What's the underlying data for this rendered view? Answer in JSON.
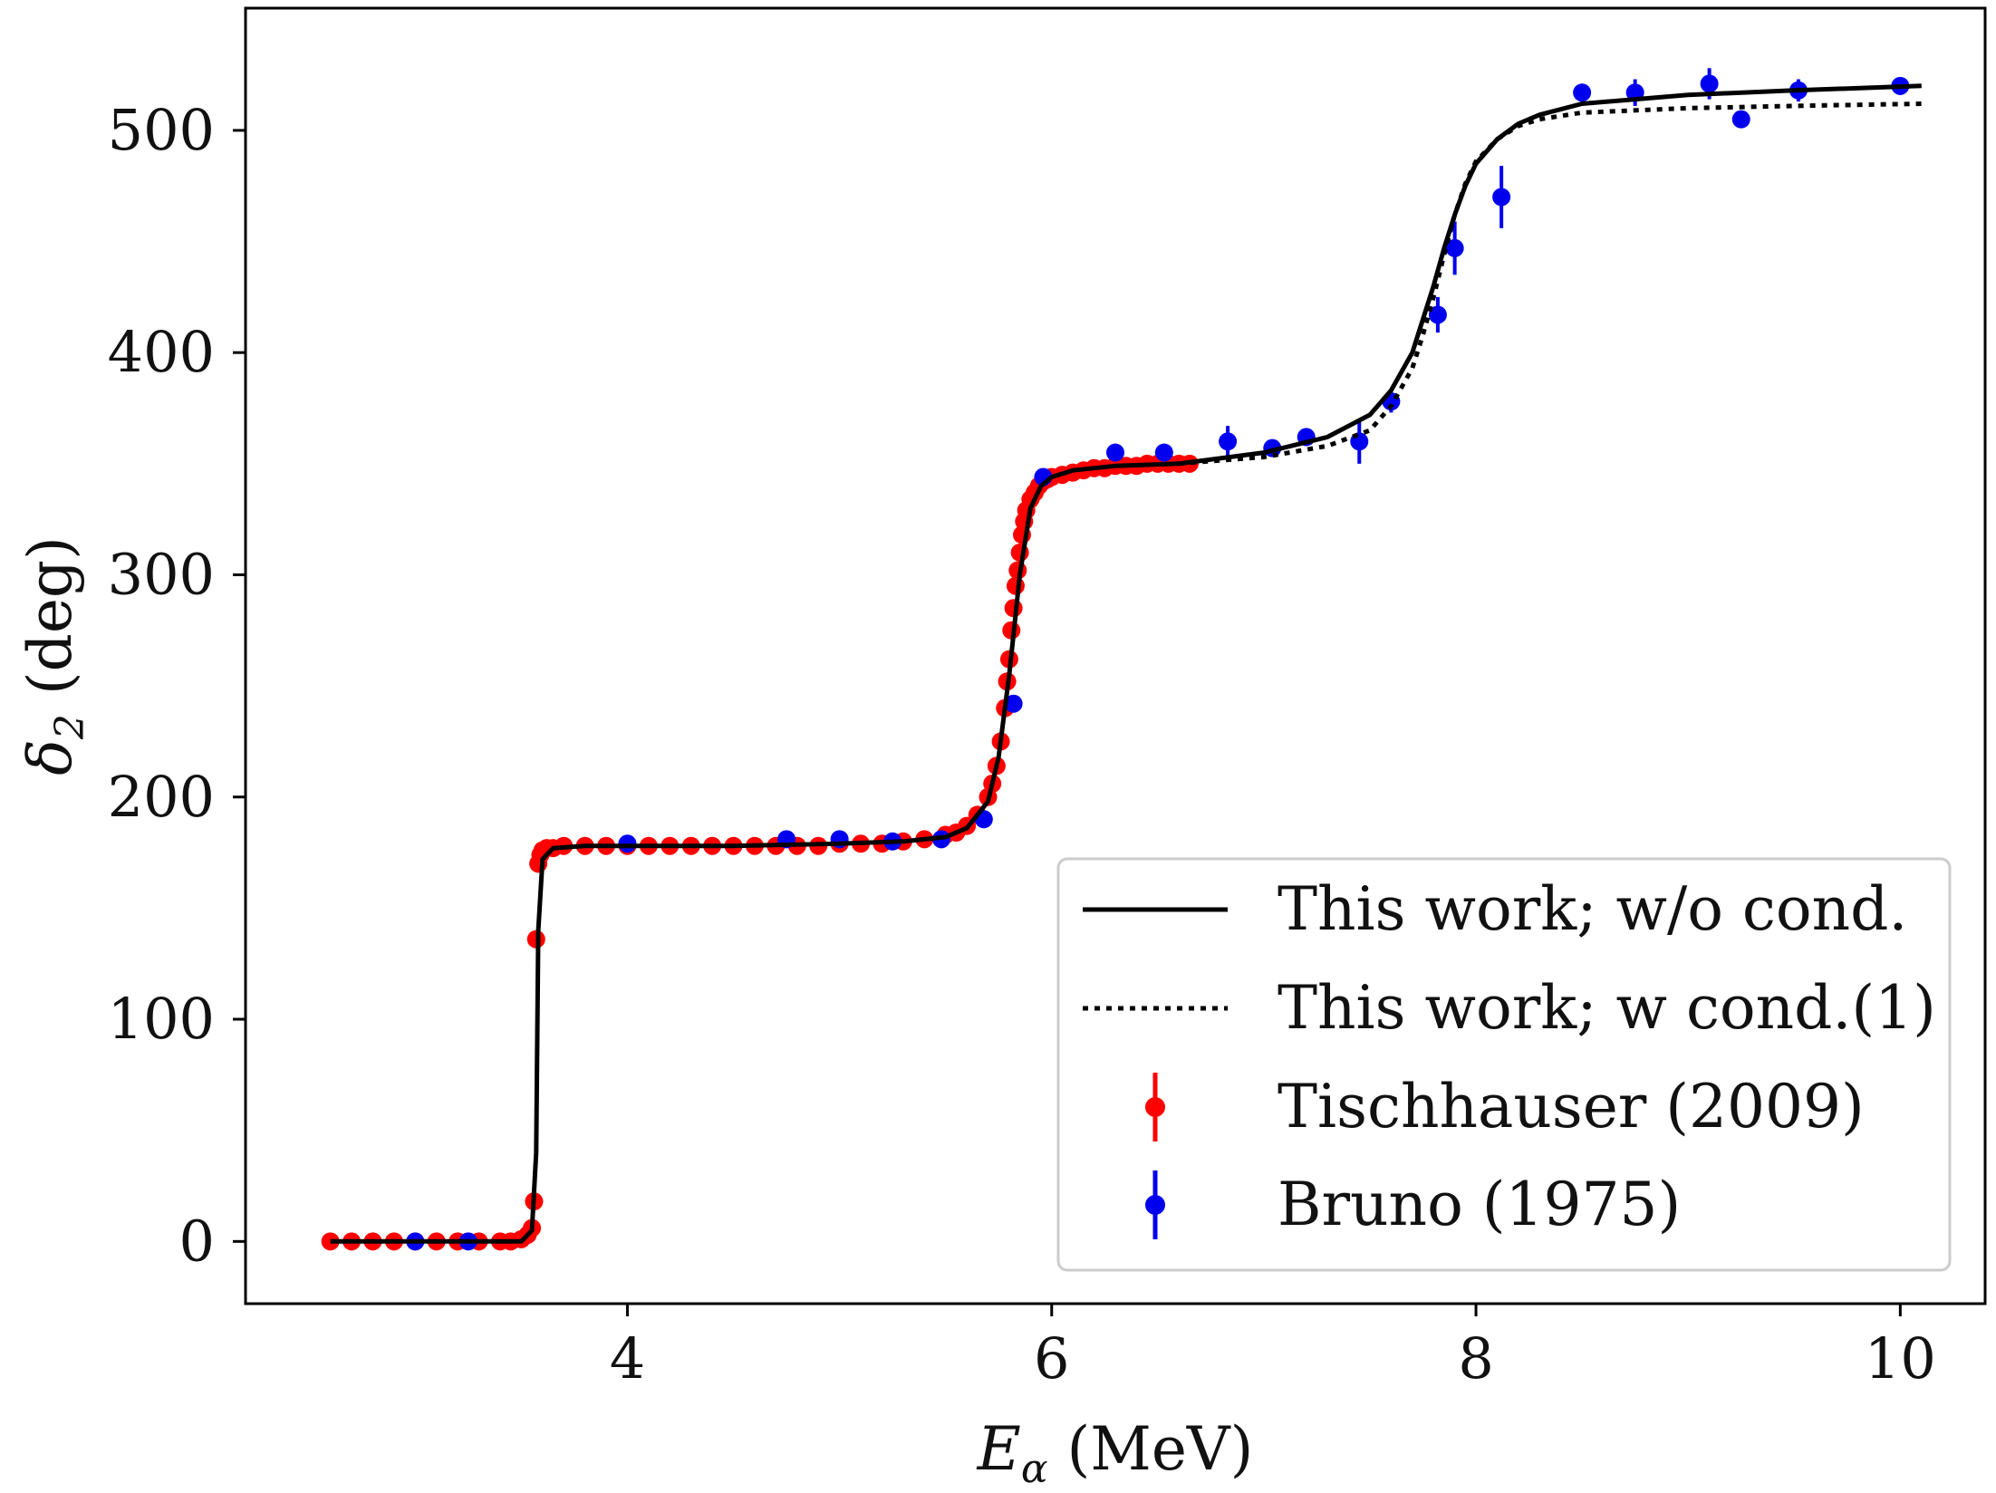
{
  "chart_data": {
    "type": "scatter",
    "xlabel": "E_α (MeV)",
    "ylabel": "δ_2 (deg)",
    "xlim": [
      2.2,
      10.4
    ],
    "ylim": [
      -28,
      555
    ],
    "x_ticks": [
      4,
      6,
      8,
      10
    ],
    "y_ticks": [
      0,
      100,
      200,
      300,
      400,
      500
    ],
    "grid": false,
    "legend_position": "lower-right",
    "series": [
      {
        "name": "This work; w/o cond.",
        "style": "solid-line",
        "color": "#000000",
        "x": [
          2.6,
          3.0,
          3.5,
          3.55,
          3.57,
          3.58,
          3.6,
          3.65,
          3.8,
          4.0,
          4.5,
          5.0,
          5.3,
          5.5,
          5.6,
          5.7,
          5.75,
          5.8,
          5.85,
          5.9,
          5.95,
          6.0,
          6.1,
          6.3,
          6.6,
          7.0,
          7.3,
          7.5,
          7.6,
          7.7,
          7.75,
          7.8,
          7.85,
          7.9,
          7.95,
          8.0,
          8.1,
          8.2,
          8.3,
          8.5,
          9.0,
          9.5,
          10.1
        ],
        "y": [
          0,
          0,
          0,
          5,
          40,
          140,
          172,
          177,
          178,
          178,
          178,
          179,
          180,
          182,
          186,
          198,
          218,
          255,
          300,
          330,
          340,
          344,
          347,
          349,
          350,
          355,
          362,
          372,
          383,
          400,
          415,
          430,
          447,
          462,
          475,
          485,
          496,
          503,
          507,
          512,
          516,
          518,
          520
        ]
      },
      {
        "name": "This work; w cond.(1)",
        "style": "dotted-line",
        "color": "#000000",
        "x": [
          6.6,
          7.0,
          7.3,
          7.5,
          7.6,
          7.7,
          7.75,
          7.8,
          7.85,
          7.9,
          7.95,
          8.0,
          8.1,
          8.2,
          8.3,
          8.5,
          9.0,
          9.5,
          10.1
        ],
        "y": [
          350,
          353,
          358,
          365,
          376,
          393,
          408,
          425,
          444,
          462,
          476,
          486,
          496,
          502,
          505,
          508,
          510,
          511,
          512
        ]
      },
      {
        "name": "Tischhauser (2009)",
        "style": "markers",
        "color": "#ff0000",
        "x": [
          2.6,
          2.7,
          2.8,
          2.9,
          3.0,
          3.1,
          3.2,
          3.3,
          3.4,
          3.45,
          3.5,
          3.53,
          3.55,
          3.56,
          3.57,
          3.58,
          3.59,
          3.6,
          3.62,
          3.65,
          3.7,
          3.8,
          3.9,
          4.0,
          4.1,
          4.2,
          4.3,
          4.4,
          4.5,
          4.6,
          4.7,
          4.8,
          4.9,
          5.0,
          5.1,
          5.2,
          5.3,
          5.4,
          5.5,
          5.55,
          5.6,
          5.65,
          5.7,
          5.72,
          5.74,
          5.76,
          5.78,
          5.79,
          5.8,
          5.81,
          5.82,
          5.83,
          5.84,
          5.85,
          5.86,
          5.87,
          5.88,
          5.9,
          5.92,
          5.94,
          5.96,
          5.98,
          6.0,
          6.05,
          6.1,
          6.15,
          6.2,
          6.25,
          6.3,
          6.35,
          6.4,
          6.45,
          6.5,
          6.55,
          6.6,
          6.65
        ],
        "y": [
          0,
          0,
          0,
          0,
          0,
          0,
          0,
          0,
          0,
          0,
          1,
          3,
          6,
          18,
          136,
          170,
          174,
          176,
          177,
          177,
          178,
          178,
          178,
          178,
          178,
          178,
          178,
          178,
          178,
          178,
          178,
          178,
          178,
          179,
          179,
          179,
          180,
          181,
          183,
          184,
          187,
          192,
          200,
          206,
          214,
          225,
          240,
          252,
          262,
          275,
          285,
          295,
          302,
          310,
          318,
          324,
          329,
          334,
          337,
          340,
          342,
          343,
          344,
          345,
          346,
          347,
          348,
          348,
          349,
          349,
          349,
          350,
          350,
          350,
          350,
          350
        ]
      },
      {
        "name": "Bruno (1975)",
        "style": "markers",
        "color": "#0000ee",
        "x": [
          3.0,
          3.25,
          4.0,
          4.75,
          5.0,
          5.25,
          5.48,
          5.68,
          5.82,
          5.96,
          6.3,
          6.53,
          6.83,
          7.04,
          7.2,
          7.45,
          7.6,
          7.82,
          7.9,
          8.12,
          8.5,
          8.75,
          9.1,
          9.25,
          9.52,
          10.0
        ],
        "y": [
          0,
          0,
          179,
          181,
          181,
          180,
          181,
          190,
          242,
          344,
          355,
          355,
          360,
          357,
          362,
          360,
          378,
          417,
          447,
          470,
          517,
          517,
          521,
          505,
          518,
          520
        ],
        "err": [
          2,
          2,
          2,
          3,
          3,
          3,
          3,
          3,
          3,
          3,
          4,
          4,
          7,
          3,
          4,
          10,
          5,
          8,
          12,
          14,
          4,
          6,
          7,
          3,
          5,
          4
        ]
      }
    ]
  }
}
